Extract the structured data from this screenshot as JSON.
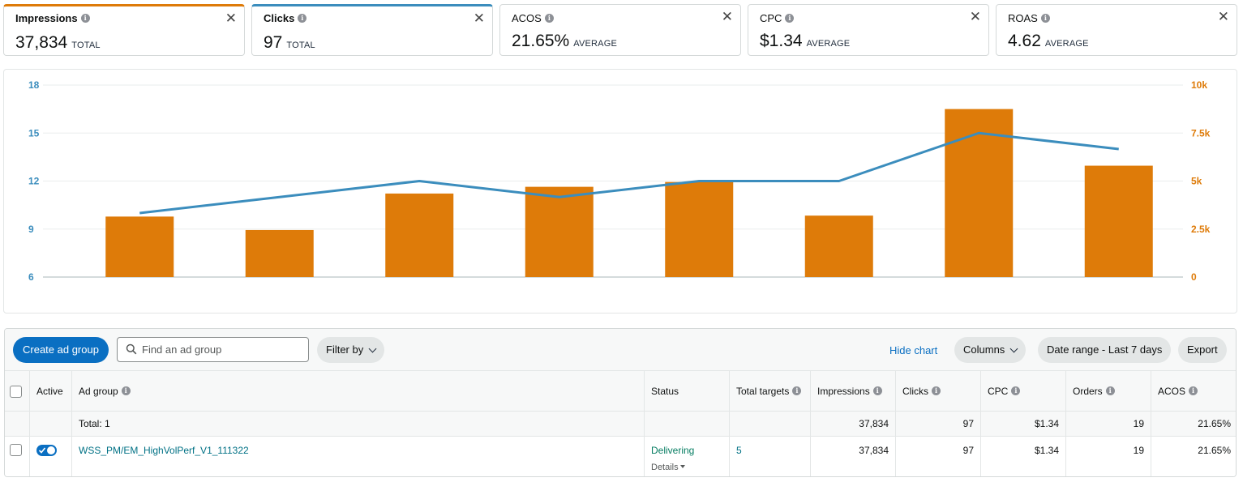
{
  "metrics": [
    {
      "name": "Impressions",
      "value": "37,834",
      "unit": "TOTAL"
    },
    {
      "name": "Clicks",
      "value": "97",
      "unit": "TOTAL"
    },
    {
      "name": "ACOS",
      "value": "21.65%",
      "unit": "AVERAGE"
    },
    {
      "name": "CPC",
      "value": "$1.34",
      "unit": "AVERAGE"
    },
    {
      "name": "ROAS",
      "value": "4.62",
      "unit": "AVERAGE"
    }
  ],
  "colors": {
    "impressions": "#de7b09",
    "clicks": "#3b8dbd",
    "primary": "#0a6fc2"
  },
  "chart_data": {
    "type": "bar",
    "categories": [
      "",
      "",
      "",
      "",
      "",
      "",
      "",
      ""
    ],
    "series": [
      {
        "type": "bar",
        "axis": "right",
        "values": [
          3150,
          2450,
          4350,
          4700,
          4950,
          3200,
          8750,
          5800
        ]
      },
      {
        "type": "line",
        "axis": "left",
        "values": [
          10,
          11,
          12,
          11,
          12,
          12,
          15,
          14
        ]
      }
    ],
    "y_left": {
      "ticks": [
        "18",
        "15",
        "12",
        "9",
        "6"
      ],
      "range": [
        6,
        18
      ]
    },
    "y_right": {
      "ticks": [
        "10k",
        "7.5k",
        "5k",
        "2.5k",
        "0"
      ],
      "range": [
        0,
        10000
      ]
    },
    "grid": true
  },
  "toolbar": {
    "create_label": "Create ad group",
    "search_placeholder": "Find an ad group",
    "filter_label": "Filter by",
    "hide_chart_label": "Hide chart",
    "columns_label": "Columns",
    "date_range_label": "Date range - Last 7 days",
    "export_label": "Export"
  },
  "table": {
    "headers": {
      "active": "Active",
      "ad_group": "Ad group",
      "status": "Status",
      "total_targets": "Total targets",
      "impressions": "Impressions",
      "clicks": "Clicks",
      "cpc": "CPC",
      "orders": "Orders",
      "acos": "ACOS"
    },
    "total": {
      "label": "Total: 1",
      "impressions": "37,834",
      "clicks": "97",
      "cpc": "$1.34",
      "orders": "19",
      "acos": "21.65%"
    },
    "rows": [
      {
        "ad_group": "WSS_PM/EM_HighVolPerf_V1_111322",
        "status": "Delivering",
        "details": "Details",
        "total_targets": "5",
        "impressions": "37,834",
        "clicks": "97",
        "cpc": "$1.34",
        "orders": "19",
        "acos": "21.65%"
      }
    ]
  }
}
